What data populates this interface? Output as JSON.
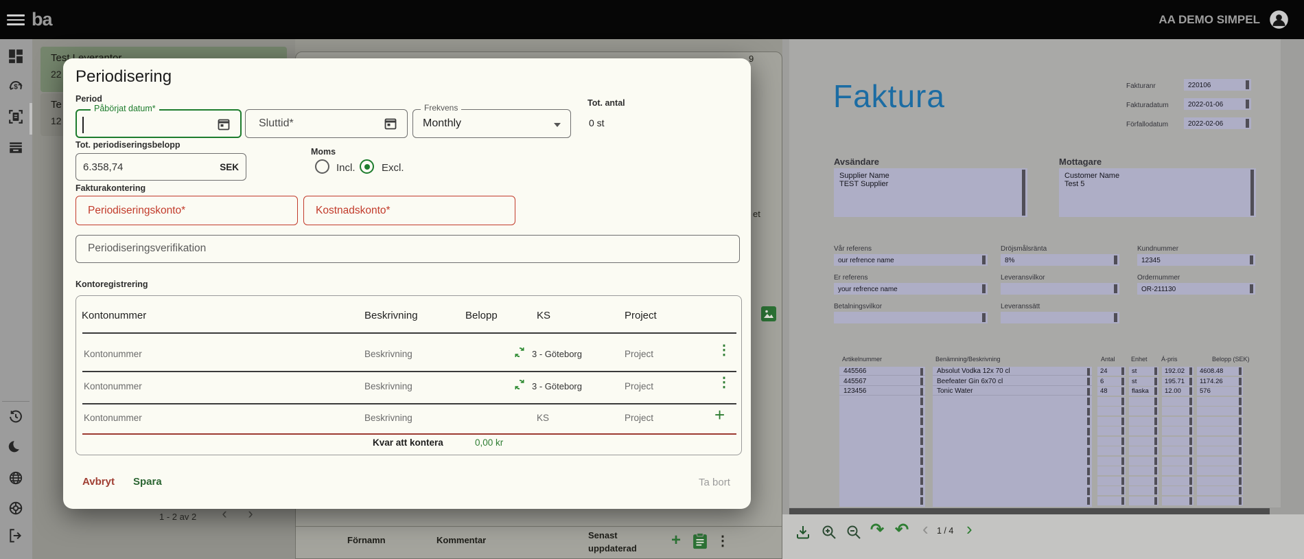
{
  "colors": {
    "accent_green": "#2e7d32",
    "error_red": "#c0392b",
    "faktura_blue": "#1b6ca3",
    "highlight_purple": "#aeaec6",
    "topbar_black": "#060606"
  },
  "topbar": {
    "logo": "ba",
    "account_name": "AA DEMO SIMPEL"
  },
  "left_panel": {
    "card1": {
      "line1": "Test Leverantor",
      "line2": "22"
    },
    "card2": {
      "line1": "Te",
      "line2": "12"
    },
    "pagination": "1 - 2 av 2"
  },
  "middle_panel": {
    "fragment_top": "9",
    "fragment_mid": "et",
    "footer": {
      "firstname": "Förnamn",
      "comment": "Kommentar",
      "updated_line1": "Senast",
      "updated_line2": "uppdaterad"
    }
  },
  "modal": {
    "title": "Periodisering",
    "period_label": "Period",
    "start_date_label": "Påbörjat datum*",
    "end_date_label": "Sluttid*",
    "frequency_label": "Frekvens",
    "frequency_value": "Monthly",
    "total_count_label": "Tot. antal",
    "total_count_value": "0 st",
    "amount_label": "Tot. periodiseringsbelopp",
    "amount_value": "6.358,74",
    "amount_suffix": "SEK",
    "vat_label": "Moms",
    "vat_incl": "Incl.",
    "vat_excl": "Excl.",
    "invoice_accounting_label": "Fakturakontering",
    "deferral_account_label": "Periodiseringskonto*",
    "cost_account_label": "Kostnadskonto*",
    "verification_placeholder": "Periodiseringsverifikation",
    "account_registration_label": "Kontoregistrering",
    "table": {
      "headers": [
        "Kontonummer",
        "Beskrivning",
        "Belopp",
        "KS",
        "Project"
      ],
      "rows": [
        {
          "kontonummer": "Kontonummer",
          "beskrivning": "Beskrivning",
          "ks": "3 - Göteborg",
          "project": "Project"
        },
        {
          "kontonummer": "Kontonummer",
          "beskrivning": "Beskrivning",
          "ks": "3 - Göteborg",
          "project": "Project"
        },
        {
          "kontonummer": "Kontonummer",
          "beskrivning": "Beskrivning",
          "ks": "KS",
          "project": "Project"
        }
      ],
      "remaining_label": "Kvar att kontera",
      "remaining_value": "0,00 kr"
    },
    "buttons": {
      "cancel": "Avbryt",
      "save": "Spara",
      "delete": "Ta bort"
    }
  },
  "invoice": {
    "title": "Faktura",
    "meta": [
      {
        "label": "Fakturanr",
        "value": "220106"
      },
      {
        "label": "Fakturadatum",
        "value": "2022-01-06"
      },
      {
        "label": "Förfallodatum",
        "value": "2022-02-06"
      }
    ],
    "sender_label": "Avsändare",
    "sender_line1": "Supplier Name",
    "sender_line2": "TEST Supplier",
    "recipient_label": "Mottagare",
    "recipient_line1": "Customer Name",
    "recipient_line2": "Test 5",
    "refs": [
      {
        "label": "Vår referens",
        "value": "our refrence name"
      },
      {
        "label": "Dröjsmålsränta",
        "value": "8%"
      },
      {
        "label": "Kundnummer",
        "value": "12345"
      },
      {
        "label": "Er referens",
        "value": "your refrence name"
      },
      {
        "label": "Leveransvilkor",
        "value": ""
      },
      {
        "label": "Ordernummer",
        "value": "OR-211130"
      },
      {
        "label": "Betalningsvilkor",
        "value": ""
      },
      {
        "label": "Leveranssätt",
        "value": ""
      }
    ],
    "items": {
      "headers": [
        "Artikelnummer",
        "Benämning/Beskrivning",
        "Antal",
        "Enhet",
        "Á-pris",
        "Belopp (SEK)"
      ],
      "rows": [
        {
          "artikelnummer": "445566",
          "beskrivning": "Absolut Vodka 12x 70 cl",
          "antal": "24",
          "enhet": "st",
          "apris": "192.02",
          "belopp": "4608.48"
        },
        {
          "artikelnummer": "445567",
          "beskrivning": "Beefeater Gin 6x70 cl",
          "antal": "6",
          "enhet": "st",
          "apris": "195.71",
          "belopp": "1174.26"
        },
        {
          "artikelnummer": "123456",
          "beskrivning": "Tonic Water",
          "antal": "48",
          "enhet": "flaska",
          "apris": "12.00",
          "belopp": "576"
        }
      ]
    },
    "pager": {
      "page": "1 / 4"
    }
  },
  "glyphs": {
    "dots": "⋮",
    "plus": "+",
    "chevron_left": "‹",
    "chevron_right": "›",
    "redo": "↷",
    "undo": "↶"
  }
}
